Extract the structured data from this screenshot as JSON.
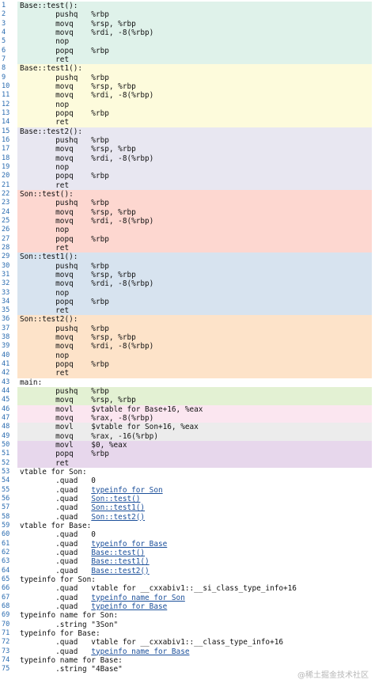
{
  "colors": {
    "mint": "#dff2ea",
    "yellow": "#fdfbdc",
    "lavender": "#e8e7f1",
    "salmon": "#fdd7d0",
    "blue": "#d7e3ef",
    "peach": "#fde3c9",
    "green": "#e3f1d3",
    "pink": "#fbe6f0",
    "gray": "#ececec",
    "purple": "#e7d7ec",
    "line_number": "#2b6cb0"
  },
  "lines": [
    {
      "n": "1",
      "text": "Base::test():",
      "bg": "mint"
    },
    {
      "n": "2",
      "text": "        pushq   %rbp",
      "bg": "mint"
    },
    {
      "n": "3",
      "text": "        movq    %rsp, %rbp",
      "bg": "mint"
    },
    {
      "n": "4",
      "text": "        movq    %rdi, -8(%rbp)",
      "bg": "mint"
    },
    {
      "n": "5",
      "text": "        nop",
      "bg": "mint"
    },
    {
      "n": "6",
      "text": "        popq    %rbp",
      "bg": "mint"
    },
    {
      "n": "7",
      "text": "        ret",
      "bg": "mint"
    },
    {
      "n": "8",
      "text": "Base::test1():",
      "bg": "yellow"
    },
    {
      "n": "9",
      "text": "        pushq   %rbp",
      "bg": "yellow"
    },
    {
      "n": "10",
      "text": "        movq    %rsp, %rbp",
      "bg": "yellow"
    },
    {
      "n": "11",
      "text": "        movq    %rdi, -8(%rbp)",
      "bg": "yellow"
    },
    {
      "n": "12",
      "text": "        nop",
      "bg": "yellow"
    },
    {
      "n": "13",
      "text": "        popq    %rbp",
      "bg": "yellow"
    },
    {
      "n": "14",
      "text": "        ret",
      "bg": "yellow"
    },
    {
      "n": "15",
      "text": "Base::test2():",
      "bg": "lavender"
    },
    {
      "n": "16",
      "text": "        pushq   %rbp",
      "bg": "lavender"
    },
    {
      "n": "17",
      "text": "        movq    %rsp, %rbp",
      "bg": "lavender"
    },
    {
      "n": "18",
      "text": "        movq    %rdi, -8(%rbp)",
      "bg": "lavender"
    },
    {
      "n": "19",
      "text": "        nop",
      "bg": "lavender"
    },
    {
      "n": "20",
      "text": "        popq    %rbp",
      "bg": "lavender"
    },
    {
      "n": "21",
      "text": "        ret",
      "bg": "lavender"
    },
    {
      "n": "22",
      "text": "Son::test():",
      "bg": "salmon"
    },
    {
      "n": "23",
      "text": "        pushq   %rbp",
      "bg": "salmon"
    },
    {
      "n": "24",
      "text": "        movq    %rsp, %rbp",
      "bg": "salmon"
    },
    {
      "n": "25",
      "text": "        movq    %rdi, -8(%rbp)",
      "bg": "salmon"
    },
    {
      "n": "26",
      "text": "        nop",
      "bg": "salmon"
    },
    {
      "n": "27",
      "text": "        popq    %rbp",
      "bg": "salmon"
    },
    {
      "n": "28",
      "text": "        ret",
      "bg": "salmon"
    },
    {
      "n": "29",
      "text": "Son::test1():",
      "bg": "blue"
    },
    {
      "n": "30",
      "text": "        pushq   %rbp",
      "bg": "blue"
    },
    {
      "n": "31",
      "text": "        movq    %rsp, %rbp",
      "bg": "blue"
    },
    {
      "n": "32",
      "text": "        movq    %rdi, -8(%rbp)",
      "bg": "blue"
    },
    {
      "n": "33",
      "text": "        nop",
      "bg": "blue"
    },
    {
      "n": "34",
      "text": "        popq    %rbp",
      "bg": "blue"
    },
    {
      "n": "35",
      "text": "        ret",
      "bg": "blue"
    },
    {
      "n": "36",
      "text": "Son::test2():",
      "bg": "peach"
    },
    {
      "n": "37",
      "text": "        pushq   %rbp",
      "bg": "peach"
    },
    {
      "n": "38",
      "text": "        movq    %rsp, %rbp",
      "bg": "peach"
    },
    {
      "n": "39",
      "text": "        movq    %rdi, -8(%rbp)",
      "bg": "peach"
    },
    {
      "n": "40",
      "text": "        nop",
      "bg": "peach"
    },
    {
      "n": "41",
      "text": "        popq    %rbp",
      "bg": "peach"
    },
    {
      "n": "42",
      "text": "        ret",
      "bg": "peach"
    },
    {
      "n": "43",
      "text": "main:",
      "bg": ""
    },
    {
      "n": "44",
      "text": "        pushq   %rbp",
      "bg": "green"
    },
    {
      "n": "45",
      "text": "        movq    %rsp, %rbp",
      "bg": "green"
    },
    {
      "n": "46",
      "text": "        movl    $vtable for Base+16, %eax",
      "bg": "pink"
    },
    {
      "n": "47",
      "text": "        movq    %rax, -8(%rbp)",
      "bg": "pink"
    },
    {
      "n": "48",
      "text": "        movl    $vtable for Son+16, %eax",
      "bg": "gray"
    },
    {
      "n": "49",
      "text": "        movq    %rax, -16(%rbp)",
      "bg": "gray"
    },
    {
      "n": "50",
      "text": "        movl    $0, %eax",
      "bg": "purple"
    },
    {
      "n": "51",
      "text": "        popq    %rbp",
      "bg": "purple"
    },
    {
      "n": "52",
      "text": "        ret",
      "bg": "purple"
    },
    {
      "n": "53",
      "text": "vtable for Son:",
      "bg": ""
    },
    {
      "n": "54",
      "text": "        .quad   0",
      "bg": ""
    },
    {
      "n": "55",
      "text": "        .quad   typeinfo for Son",
      "bg": "",
      "link": "typeinfo for Son"
    },
    {
      "n": "56",
      "text": "        .quad   Son::test()",
      "bg": "",
      "link": "Son::test()"
    },
    {
      "n": "57",
      "text": "        .quad   Son::test1()",
      "bg": "",
      "link": "Son::test1()"
    },
    {
      "n": "58",
      "text": "        .quad   Son::test2()",
      "bg": "",
      "link": "Son::test2()"
    },
    {
      "n": "59",
      "text": "vtable for Base:",
      "bg": ""
    },
    {
      "n": "60",
      "text": "        .quad   0",
      "bg": ""
    },
    {
      "n": "61",
      "text": "        .quad   typeinfo for Base",
      "bg": "",
      "link": "typeinfo for Base"
    },
    {
      "n": "62",
      "text": "        .quad   Base::test()",
      "bg": "",
      "link": "Base::test()"
    },
    {
      "n": "63",
      "text": "        .quad   Base::test1()",
      "bg": "",
      "link": "Base::test1()"
    },
    {
      "n": "64",
      "text": "        .quad   Base::test2()",
      "bg": "",
      "link": "Base::test2()"
    },
    {
      "n": "65",
      "text": "typeinfo for Son:",
      "bg": ""
    },
    {
      "n": "66",
      "text": "        .quad   vtable for __cxxabiv1::__si_class_type_info+16",
      "bg": ""
    },
    {
      "n": "67",
      "text": "        .quad   typeinfo name for Son",
      "bg": "",
      "link": "typeinfo name for Son"
    },
    {
      "n": "68",
      "text": "        .quad   typeinfo for Base",
      "bg": "",
      "link": "typeinfo for Base"
    },
    {
      "n": "69",
      "text": "typeinfo name for Son:",
      "bg": ""
    },
    {
      "n": "70",
      "text": "        .string \"3Son\"",
      "bg": ""
    },
    {
      "n": "71",
      "text": "typeinfo for Base:",
      "bg": ""
    },
    {
      "n": "72",
      "text": "        .quad   vtable for __cxxabiv1::__class_type_info+16",
      "bg": ""
    },
    {
      "n": "73",
      "text": "        .quad   typeinfo name for Base",
      "bg": "",
      "link": "typeinfo name for Base"
    },
    {
      "n": "74",
      "text": "typeinfo name for Base:",
      "bg": ""
    },
    {
      "n": "75",
      "text": "        .string \"4Base\"",
      "bg": ""
    }
  ],
  "watermark": "@稀土掘金技术社区"
}
